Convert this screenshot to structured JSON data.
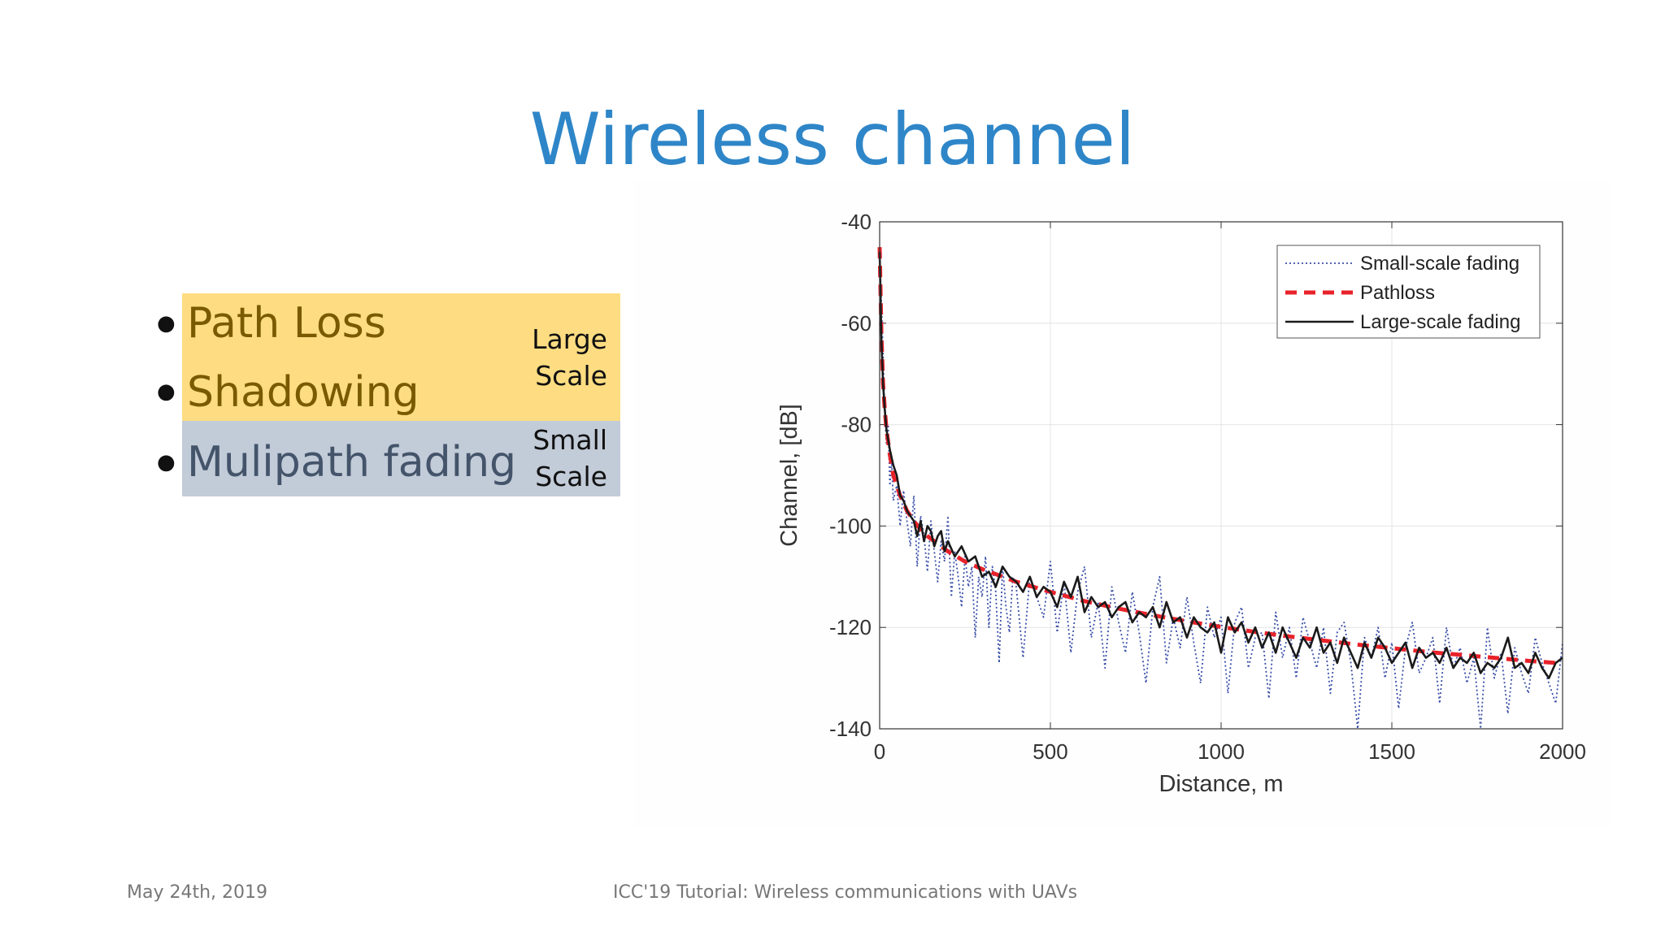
{
  "slide": {
    "title": "Wireless channel",
    "footer_left": "May 24th, 2019",
    "footer_center": "ICC'19 Tutorial: Wireless communications with UAVs"
  },
  "bullets": [
    {
      "text": "Path Loss",
      "group": "large"
    },
    {
      "text": "Shadowing",
      "group": "large"
    },
    {
      "text": "Mulipath fading",
      "group": "small"
    }
  ],
  "scale_labels": {
    "large_line1": "Large",
    "large_line2": "Scale",
    "small_line1": "Small",
    "small_line2": "Scale"
  },
  "colors": {
    "title": "#2E86C8",
    "large_scale_highlight": "#FEDD82",
    "small_scale_highlight": "#C2CBD8",
    "small_scale_series": "#3A4FA8",
    "pathloss_series": "#E8222A",
    "large_scale_series": "#1A1A1A"
  },
  "chart_data": {
    "type": "line",
    "xlabel": "Distance, m",
    "ylabel": "Channel, [dB]",
    "xlim": [
      0,
      2000
    ],
    "ylim": [
      -140,
      -40
    ],
    "xticks": [
      "0",
      "500",
      "1000",
      "1500",
      "2000"
    ],
    "yticks": [
      "-40",
      "-60",
      "-80",
      "-100",
      "-120",
      "-140"
    ],
    "grid": true,
    "legend_position": "top-right",
    "series": [
      {
        "name": "Small-scale fading",
        "style": "dotted",
        "x": [
          0,
          5,
          10,
          15,
          20,
          25,
          30,
          35,
          40,
          50,
          60,
          70,
          80,
          90,
          100,
          110,
          120,
          130,
          140,
          150,
          160,
          170,
          180,
          190,
          200,
          210,
          220,
          230,
          240,
          250,
          260,
          270,
          280,
          290,
          300,
          310,
          320,
          330,
          340,
          350,
          360,
          370,
          380,
          390,
          400,
          420,
          440,
          460,
          480,
          500,
          520,
          540,
          560,
          580,
          600,
          620,
          640,
          660,
          680,
          700,
          720,
          740,
          760,
          780,
          800,
          820,
          840,
          860,
          880,
          900,
          920,
          940,
          960,
          980,
          1000,
          1020,
          1040,
          1060,
          1080,
          1100,
          1120,
          1140,
          1160,
          1180,
          1200,
          1220,
          1240,
          1260,
          1280,
          1300,
          1320,
          1340,
          1360,
          1380,
          1400,
          1420,
          1440,
          1460,
          1480,
          1500,
          1520,
          1540,
          1560,
          1580,
          1600,
          1620,
          1640,
          1660,
          1680,
          1700,
          1720,
          1740,
          1760,
          1780,
          1800,
          1820,
          1840,
          1860,
          1880,
          1900,
          1920,
          1940,
          1960,
          1980,
          2000
        ],
        "values": [
          -45,
          -56,
          -66,
          -78,
          -84,
          -80,
          -92,
          -87,
          -95,
          -92,
          -100,
          -93,
          -99,
          -104,
          -94,
          -108,
          -98,
          -102,
          -109,
          -99,
          -105,
          -111,
          -103,
          -107,
          -98,
          -114,
          -105,
          -110,
          -116,
          -106,
          -112,
          -108,
          -122,
          -110,
          -114,
          -106,
          -120,
          -108,
          -113,
          -127,
          -108,
          -116,
          -121,
          -110,
          -112,
          -126,
          -110,
          -114,
          -118,
          -107,
          -121,
          -111,
          -125,
          -113,
          -108,
          -122,
          -115,
          -128,
          -112,
          -119,
          -125,
          -113,
          -121,
          -131,
          -116,
          -110,
          -127,
          -118,
          -124,
          -114,
          -123,
          -131,
          -116,
          -122,
          -118,
          -133,
          -119,
          -116,
          -128,
          -122,
          -121,
          -134,
          -117,
          -126,
          -120,
          -130,
          -118,
          -123,
          -128,
          -120,
          -133,
          -121,
          -119,
          -127,
          -140,
          -122,
          -126,
          -120,
          -130,
          -123,
          -136,
          -124,
          -119,
          -129,
          -126,
          -122,
          -135,
          -120,
          -128,
          -124,
          -131,
          -126,
          -140,
          -120,
          -130,
          -125,
          -137,
          -124,
          -129,
          -133,
          -122,
          -127,
          -131,
          -135,
          -123
        ]
      },
      {
        "name": "Pathloss",
        "style": "dashed",
        "x": [
          0,
          5,
          10,
          15,
          20,
          30,
          40,
          60,
          80,
          100,
          130,
          160,
          200,
          250,
          300,
          400,
          500,
          600,
          700,
          800,
          900,
          1000,
          1100,
          1200,
          1300,
          1400,
          1500,
          1600,
          1700,
          1800,
          1900,
          2000
        ],
        "values": [
          -45,
          -62,
          -72,
          -77,
          -81,
          -86,
          -90,
          -94,
          -97,
          -99,
          -101.5,
          -103,
          -105,
          -107,
          -108.5,
          -111,
          -113,
          -114.8,
          -116.3,
          -117.6,
          -118.8,
          -119.9,
          -120.9,
          -121.8,
          -122.6,
          -123.4,
          -124.1,
          -124.8,
          -125.4,
          -126,
          -126.6,
          -127.1
        ]
      },
      {
        "name": "Large-scale fading",
        "style": "solid",
        "x": [
          0,
          5,
          10,
          15,
          20,
          30,
          40,
          50,
          60,
          70,
          80,
          90,
          100,
          110,
          120,
          130,
          140,
          150,
          160,
          170,
          180,
          190,
          200,
          220,
          240,
          260,
          280,
          300,
          320,
          340,
          360,
          380,
          400,
          420,
          440,
          460,
          480,
          500,
          520,
          540,
          560,
          580,
          600,
          620,
          640,
          660,
          680,
          700,
          720,
          740,
          760,
          780,
          800,
          820,
          840,
          860,
          880,
          900,
          920,
          940,
          960,
          980,
          1000,
          1020,
          1040,
          1060,
          1080,
          1100,
          1120,
          1140,
          1160,
          1180,
          1200,
          1220,
          1240,
          1260,
          1280,
          1300,
          1320,
          1340,
          1360,
          1380,
          1400,
          1420,
          1440,
          1460,
          1480,
          1500,
          1520,
          1540,
          1560,
          1580,
          1600,
          1620,
          1640,
          1660,
          1680,
          1700,
          1720,
          1740,
          1760,
          1780,
          1800,
          1820,
          1840,
          1860,
          1880,
          1900,
          1920,
          1940,
          1960,
          1980,
          2000
        ],
        "values": [
          -46,
          -63,
          -72,
          -77,
          -81,
          -85,
          -88,
          -90,
          -94,
          -95,
          -97,
          -98,
          -99,
          -102,
          -99,
          -103,
          -100,
          -101,
          -104,
          -102,
          -101,
          -105,
          -103,
          -106,
          -104,
          -107,
          -106,
          -110,
          -109,
          -112,
          -108,
          -110,
          -111,
          -113,
          -110,
          -114,
          -112,
          -113,
          -116,
          -111,
          -114,
          -110,
          -117,
          -114,
          -116,
          -115,
          -118,
          -116,
          -115,
          -119,
          -117,
          -118,
          -116,
          -120,
          -115,
          -119,
          -118,
          -122,
          -118,
          -120,
          -121,
          -119,
          -125,
          -118,
          -121,
          -119,
          -123,
          -120,
          -124,
          -121,
          -125,
          -120,
          -123,
          -126,
          -122,
          -124,
          -120,
          -125,
          -123,
          -127,
          -122,
          -125,
          -128,
          -123,
          -126,
          -122,
          -124,
          -127,
          -125,
          -123,
          -128,
          -124,
          -126,
          -125,
          -127,
          -124,
          -128,
          -126,
          -127,
          -125,
          -129,
          -127,
          -128,
          -126,
          -122,
          -128,
          -127,
          -129,
          -125,
          -128,
          -130,
          -127,
          -126
        ]
      }
    ]
  }
}
